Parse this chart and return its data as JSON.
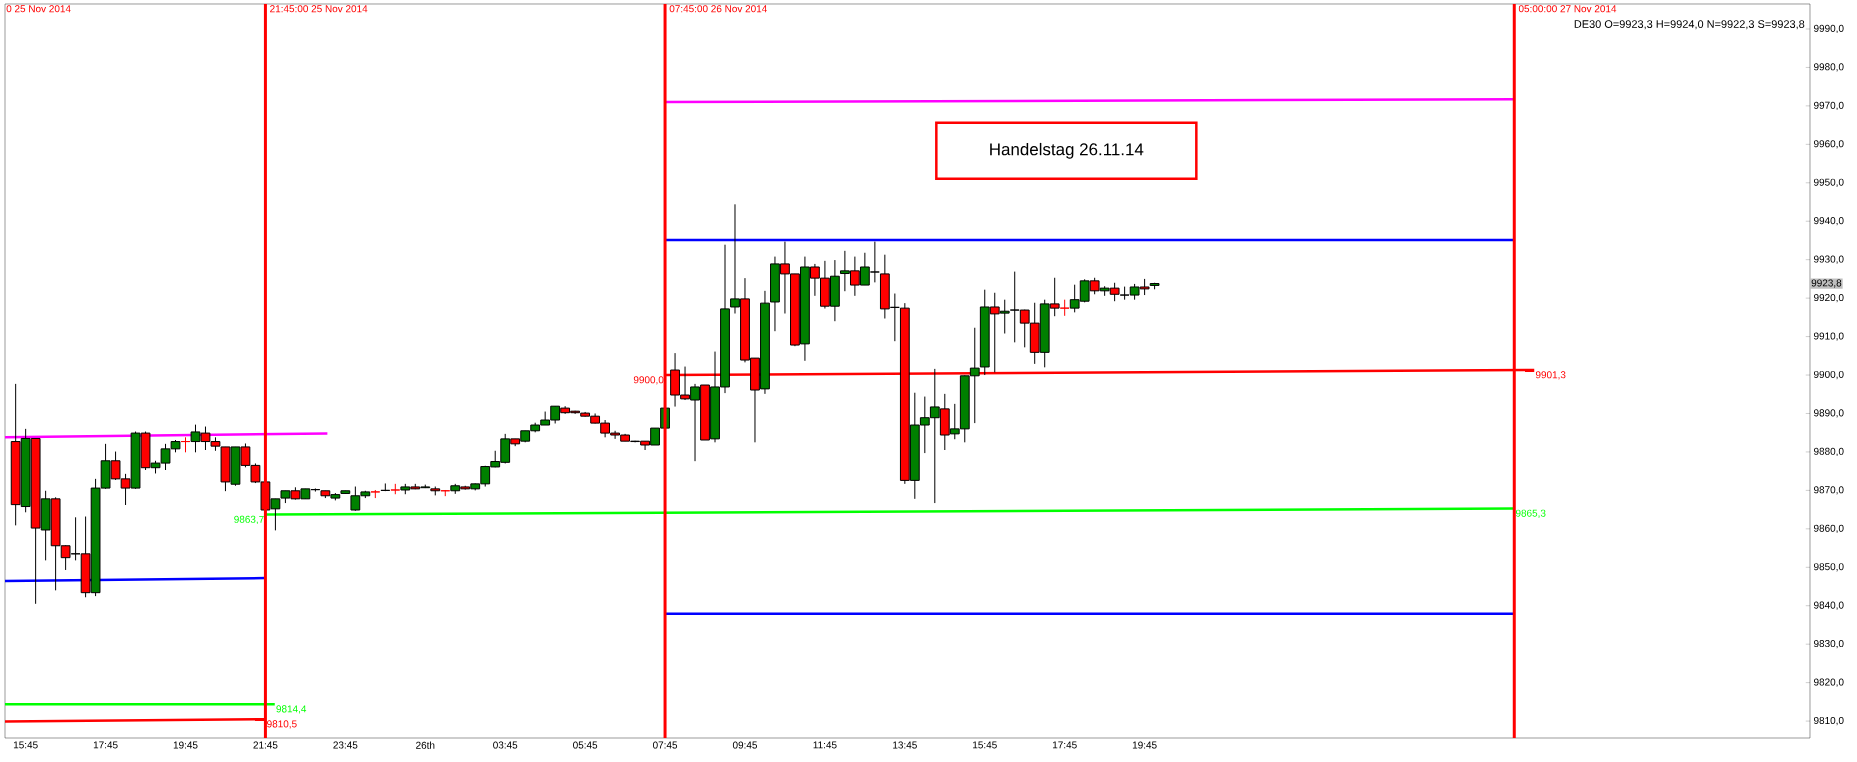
{
  "chart_data": {
    "type": "candlestick",
    "x": [
      "2014-11-25T15:30",
      "2014-11-25T15:45",
      "2014-11-25T16:00",
      "2014-11-25T16:15",
      "2014-11-25T16:30",
      "2014-11-25T16:45",
      "2014-11-25T17:00",
      "2014-11-25T17:15",
      "2014-11-25T17:30",
      "2014-11-25T17:45",
      "2014-11-25T18:00",
      "2014-11-25T18:15",
      "2014-11-25T18:30",
      "2014-11-25T18:45",
      "2014-11-25T19:00",
      "2014-11-25T19:15",
      "2014-11-25T19:30",
      "2014-11-25T19:45",
      "2014-11-25T20:00",
      "2014-11-25T20:15",
      "2014-11-25T20:30",
      "2014-11-25T20:45",
      "2014-11-25T21:00",
      "2014-11-25T21:15",
      "2014-11-25T21:30",
      "2014-11-25T21:45",
      "2014-11-25T22:00",
      "2014-11-25T22:15",
      "2014-11-25T22:30",
      "2014-11-25T22:45",
      "2014-11-25T23:00",
      "2014-11-25T23:15",
      "2014-11-25T23:30",
      "2014-11-25T23:45",
      "2014-11-26T00:00",
      "2014-11-26T00:15",
      "2014-11-26T00:30",
      "2014-11-26T00:45",
      "2014-11-26T01:00",
      "2014-11-26T01:15",
      "2014-11-26T01:30",
      "2014-11-26T01:45",
      "2014-11-26T02:00",
      "2014-11-26T02:15",
      "2014-11-26T02:30",
      "2014-11-26T02:45",
      "2014-11-26T03:00",
      "2014-11-26T03:15",
      "2014-11-26T03:30",
      "2014-11-26T03:45",
      "2014-11-26T04:00",
      "2014-11-26T04:15",
      "2014-11-26T04:30",
      "2014-11-26T04:45",
      "2014-11-26T05:00",
      "2014-11-26T05:15",
      "2014-11-26T05:30",
      "2014-11-26T05:45",
      "2014-11-26T06:00",
      "2014-11-26T06:15",
      "2014-11-26T06:30",
      "2014-11-26T06:45",
      "2014-11-26T07:00",
      "2014-11-26T07:15",
      "2014-11-26T07:30",
      "2014-11-26T07:45",
      "2014-11-26T08:00",
      "2014-11-26T08:15",
      "2014-11-26T08:30",
      "2014-11-26T08:45",
      "2014-11-26T09:00",
      "2014-11-26T09:15",
      "2014-11-26T09:30",
      "2014-11-26T09:45",
      "2014-11-26T10:00",
      "2014-11-26T10:15",
      "2014-11-26T10:30",
      "2014-11-26T10:45",
      "2014-11-26T11:00",
      "2014-11-26T11:15",
      "2014-11-26T11:30",
      "2014-11-26T11:45",
      "2014-11-26T12:00",
      "2014-11-26T12:15",
      "2014-11-26T12:30",
      "2014-11-26T12:45",
      "2014-11-26T13:00",
      "2014-11-26T13:15",
      "2014-11-26T13:30",
      "2014-11-26T13:45",
      "2014-11-26T14:00",
      "2014-11-26T14:15",
      "2014-11-26T14:30",
      "2014-11-26T14:45",
      "2014-11-26T15:00",
      "2014-11-26T15:15",
      "2014-11-26T15:30",
      "2014-11-26T15:45",
      "2014-11-26T16:00",
      "2014-11-26T16:15",
      "2014-11-26T16:30",
      "2014-11-26T16:45",
      "2014-11-26T17:00",
      "2014-11-26T17:15",
      "2014-11-26T17:30",
      "2014-11-26T17:45",
      "2014-11-26T18:00",
      "2014-11-26T18:15",
      "2014-11-26T18:30",
      "2014-11-26T18:45",
      "2014-11-26T19:00",
      "2014-11-26T19:15",
      "2014-11-26T19:30",
      "2014-11-26T19:45",
      "2014-11-26T20:00"
    ],
    "ohlc": [
      [
        9882.7,
        9897.7,
        9860.9,
        9866.3
      ],
      [
        9865.8,
        9886.0,
        9864.3,
        9883.5
      ],
      [
        9883.5,
        9883.5,
        9840.5,
        9860.2
      ],
      [
        9859.7,
        9869.9,
        9851.8,
        9867.8
      ],
      [
        9867.8,
        9868.2,
        9844.0,
        9855.6
      ],
      [
        9855.6,
        9855.7,
        9849.3,
        9852.5
      ],
      [
        9853.5,
        9863.0,
        9851.8,
        9853.5
      ],
      [
        9853.5,
        9863.2,
        9842.2,
        9843.4
      ],
      [
        9843.4,
        9873.0,
        9842.5,
        9870.6
      ],
      [
        9870.6,
        9882.1,
        9870.4,
        9877.7
      ],
      [
        9877.7,
        9880.1,
        9872.7,
        9873.0
      ],
      [
        9873.0,
        9874.3,
        9866.2,
        9870.6
      ],
      [
        9870.6,
        9885.3,
        9870.4,
        9884.9
      ],
      [
        9884.9,
        9885.3,
        9875.3,
        9875.9
      ],
      [
        9875.9,
        9877.7,
        9874.4,
        9877.1
      ],
      [
        9877.1,
        9882.1,
        9875.3,
        9880.8
      ],
      [
        9880.8,
        9883.1,
        9879.9,
        9882.7
      ],
      [
        9882.7,
        9883.8,
        9879.9,
        9882.7
      ],
      [
        9882.7,
        9887.1,
        9879.9,
        9885.2
      ],
      [
        9884.9,
        9886.6,
        9880.5,
        9882.7
      ],
      [
        9882.7,
        9883.8,
        9880.3,
        9881.5
      ],
      [
        9881.3,
        9881.3,
        9869.8,
        9872.2
      ],
      [
        9871.6,
        9881.3,
        9871.2,
        9881.3
      ],
      [
        9881.3,
        9882.2,
        9876.0,
        9876.5
      ],
      [
        9876.5,
        9877.0,
        9871.9,
        9872.2
      ],
      [
        9872.2,
        9872.2,
        9864.9,
        9864.9
      ],
      [
        9865.2,
        9867.8,
        9859.6,
        9867.8
      ],
      [
        9868.0,
        9869.9,
        9866.7,
        9869.9
      ],
      [
        9869.9,
        9870.8,
        9867.6,
        9867.8
      ],
      [
        9867.8,
        9870.4,
        9867.8,
        9870.4
      ],
      [
        9870.2,
        9870.5,
        9869.7,
        9870.2
      ],
      [
        9869.9,
        9869.9,
        9868.0,
        9868.6
      ],
      [
        9868.0,
        9869.3,
        9867.4,
        9868.9
      ],
      [
        9869.2,
        9869.9,
        9869.1,
        9869.9
      ],
      [
        9864.9,
        9871.0,
        9864.7,
        9868.6
      ],
      [
        9868.6,
        9869.9,
        9868.0,
        9869.6
      ],
      [
        9869.6,
        9870.1,
        9868.0,
        9869.6
      ],
      [
        9870.0,
        9871.8,
        9869.8,
        9870.0
      ],
      [
        9870.1,
        9871.7,
        9869.0,
        9870.1
      ],
      [
        9870.1,
        9871.7,
        9869.0,
        9870.9
      ],
      [
        9870.9,
        9871.7,
        9870.3,
        9870.4
      ],
      [
        9870.7,
        9871.5,
        9870.6,
        9870.9
      ],
      [
        9870.4,
        9871.0,
        9868.7,
        9869.9
      ],
      [
        9869.9,
        9870.1,
        9868.5,
        9869.9
      ],
      [
        9869.9,
        9871.7,
        9869.1,
        9871.2
      ],
      [
        9870.9,
        9871.2,
        9870.2,
        9870.4
      ],
      [
        9870.4,
        9871.8,
        9870.0,
        9871.7
      ],
      [
        9871.7,
        9876.4,
        9871.0,
        9876.2
      ],
      [
        9876.1,
        9880.3,
        9876.0,
        9877.5
      ],
      [
        9877.3,
        9884.7,
        9877.0,
        9883.4
      ],
      [
        9883.4,
        9883.4,
        9881.5,
        9882.1
      ],
      [
        9882.8,
        9885.5,
        9882.5,
        9885.5
      ],
      [
        9885.5,
        9887.6,
        9885.1,
        9887.0
      ],
      [
        9887.0,
        9890.5,
        9887.0,
        9888.3
      ],
      [
        9888.3,
        9891.9,
        9887.4,
        9891.9
      ],
      [
        9891.4,
        9891.9,
        9889.9,
        9890.2
      ],
      [
        9890.6,
        9890.7,
        9889.9,
        9890.2
      ],
      [
        9890.1,
        9890.4,
        9889.2,
        9889.3
      ],
      [
        9889.3,
        9890.0,
        9887.4,
        9887.5
      ],
      [
        9887.5,
        9888.3,
        9883.8,
        9884.9
      ],
      [
        9884.9,
        9885.5,
        9883.4,
        9884.4
      ],
      [
        9884.4,
        9884.7,
        9882.8,
        9882.8
      ],
      [
        9882.8,
        9882.9,
        9882.5,
        9882.7
      ],
      [
        9882.8,
        9882.8,
        9880.5,
        9881.8
      ],
      [
        9881.8,
        9886.2,
        9881.8,
        9886.2
      ],
      [
        9886.2,
        9891.4,
        9886.2,
        9891.4
      ],
      [
        9901.3,
        9905.7,
        9891.8,
        9894.8
      ],
      [
        9894.8,
        9902.2,
        9893.5,
        9893.8
      ],
      [
        9893.5,
        9897.7,
        9877.6,
        9896.9
      ],
      [
        9897.4,
        9897.4,
        9883.1,
        9883.1
      ],
      [
        9883.4,
        9906.1,
        9882.5,
        9896.9
      ],
      [
        9896.9,
        9933.9,
        9895.3,
        9917.2
      ],
      [
        9917.7,
        9944.4,
        9916.0,
        9919.8
      ],
      [
        9919.8,
        9925.2,
        9903.3,
        9903.9
      ],
      [
        9904.4,
        9904.4,
        9882.5,
        9896.1
      ],
      [
        9896.4,
        9921.9,
        9895.1,
        9918.7
      ],
      [
        9919.0,
        9930.8,
        9911.4,
        9928.9
      ],
      [
        9928.9,
        9934.7,
        9916.0,
        9926.3
      ],
      [
        9926.3,
        9926.3,
        9907.5,
        9907.8
      ],
      [
        9908.1,
        9930.8,
        9903.7,
        9928.1
      ],
      [
        9928.1,
        9928.9,
        9920.6,
        9925.2
      ],
      [
        9925.2,
        9929.7,
        9917.3,
        9917.9
      ],
      [
        9917.9,
        9929.9,
        9914.0,
        9925.7
      ],
      [
        9926.4,
        9932.3,
        9921.8,
        9927.1
      ],
      [
        9927.1,
        9930.8,
        9920.6,
        9923.4
      ],
      [
        9923.4,
        9931.8,
        9923.4,
        9928.1
      ],
      [
        9926.8,
        9934.7,
        9924.1,
        9926.8
      ],
      [
        9926.3,
        9931.3,
        9914.7,
        9917.2
      ],
      [
        9917.6,
        9921.2,
        9908.8,
        9917.6
      ],
      [
        9917.4,
        9918.7,
        9871.7,
        9872.6
      ],
      [
        9872.6,
        9895.4,
        9867.8,
        9887.0
      ],
      [
        9887.0,
        9894.4,
        9879.7,
        9888.9
      ],
      [
        9888.9,
        9901.6,
        9866.7,
        9891.7
      ],
      [
        9891.2,
        9895.1,
        9880.5,
        9884.4
      ],
      [
        9884.7,
        9892.5,
        9883.3,
        9886.0
      ],
      [
        9886.0,
        9899.9,
        9882.5,
        9899.8
      ],
      [
        9899.8,
        9912.3,
        9887.5,
        9901.8
      ],
      [
        9902.1,
        9922.2,
        9900.0,
        9917.7
      ],
      [
        9917.7,
        9921.4,
        9900.7,
        9915.9
      ],
      [
        9916.1,
        9919.6,
        9910.8,
        9916.6
      ],
      [
        9916.9,
        9926.9,
        9908.5,
        9916.9
      ],
      [
        9916.9,
        9917.0,
        9907.2,
        9913.5
      ],
      [
        9913.5,
        9918.8,
        9902.9,
        9905.9
      ],
      [
        9905.9,
        9919.6,
        9902.0,
        9918.5
      ],
      [
        9918.5,
        9925.3,
        9915.3,
        9917.4
      ],
      [
        9917.4,
        9919.6,
        9915.4,
        9917.4
      ],
      [
        9917.4,
        9923.5,
        9916.3,
        9919.6
      ],
      [
        9919.2,
        9924.9,
        9918.9,
        9924.5
      ],
      [
        9924.5,
        9925.3,
        9921.0,
        9921.9
      ],
      [
        9921.9,
        9923.1,
        9920.6,
        9922.6
      ],
      [
        9922.6,
        9924.0,
        9919.2,
        9921.0
      ],
      [
        9920.8,
        9923.0,
        9919.6,
        9920.8
      ],
      [
        9920.8,
        9923.7,
        9919.6,
        9922.9
      ],
      [
        9922.9,
        9925.0,
        9920.8,
        9922.4
      ],
      [
        9923.3,
        9924.0,
        9922.3,
        9923.8
      ]
    ],
    "colors": [
      "#ff0000",
      "#008000",
      "#ff0000",
      "#008000",
      "#ff0000",
      "#ff0000",
      "#000000",
      "#ff0000",
      "#008000",
      "#008000",
      "#ff0000",
      "#ff0000",
      "#008000",
      "#ff0000",
      "#008000",
      "#008000",
      "#008000",
      "#ff0000",
      "#008000",
      "#ff0000",
      "#ff0000",
      "#ff0000",
      "#008000",
      "#ff0000",
      "#ff0000",
      "#ff0000",
      "#008000",
      "#008000",
      "#ff0000",
      "#008000",
      "#000000",
      "#ff0000",
      "#008000",
      "#008000",
      "#008000",
      "#008000",
      "#ff0000",
      "#000000",
      "#ff0000",
      "#008000",
      "#ff0000",
      "#008000",
      "#ff0000",
      "#ff0000",
      "#008000",
      "#ff0000",
      "#008000",
      "#008000",
      "#008000",
      "#008000",
      "#ff0000",
      "#008000",
      "#008000",
      "#008000",
      "#008000",
      "#ff0000",
      "#ff0000",
      "#ff0000",
      "#ff0000",
      "#ff0000",
      "#ff0000",
      "#ff0000",
      "#ff0000",
      "#ff0000",
      "#008000",
      "#008000",
      "#ff0000",
      "#ff0000",
      "#008000",
      "#ff0000",
      "#008000",
      "#008000",
      "#008000",
      "#ff0000",
      "#ff0000",
      "#008000",
      "#008000",
      "#ff0000",
      "#ff0000",
      "#008000",
      "#ff0000",
      "#ff0000",
      "#008000",
      "#008000",
      "#ff0000",
      "#008000",
      "#000000",
      "#ff0000",
      "#000000",
      "#ff0000",
      "#008000",
      "#008000",
      "#008000",
      "#ff0000",
      "#008000",
      "#008000",
      "#008000",
      "#008000",
      "#ff0000",
      "#008000",
      "#000000",
      "#ff0000",
      "#ff0000",
      "#008000",
      "#ff0000",
      "#ff0000",
      "#008000",
      "#008000",
      "#ff0000",
      "#008000",
      "#ff0000",
      "#000000",
      "#008000",
      "#ff0000",
      "#008000"
    ],
    "series": [
      {
        "type": "line",
        "color": "#ff00ff",
        "x": [
          "2014-11-25T15:14",
          "2014-11-25T23:18"
        ],
        "values": [
          9883.8,
          9884.8
        ]
      },
      {
        "type": "line",
        "color": "#0000ff",
        "x": [
          "2014-11-25T15:14",
          "2014-11-25T21:45"
        ],
        "values": [
          9846.4,
          9847.2
        ]
      },
      {
        "type": "line",
        "color": "#00ff00",
        "x": [
          "2014-11-25T15:14",
          "2014-11-25T21:59"
        ],
        "values": [
          9814.4,
          9814.4
        ]
      },
      {
        "type": "line",
        "color": "#ff0000",
        "x": [
          "2014-11-25T15:14",
          "2014-11-25T21:45"
        ],
        "values": [
          9809.9,
          9810.5
        ]
      },
      {
        "type": "line",
        "color": "#00ff00",
        "x": [
          "2014-11-25T21:45",
          "2014-11-27T05:00"
        ],
        "values": [
          9863.7,
          9865.3
        ]
      },
      {
        "type": "line",
        "color": "#ff0000",
        "x": [
          "2014-11-26T07:45",
          "2014-11-27T05:30"
        ],
        "values": [
          9900.0,
          9901.3
        ]
      },
      {
        "type": "line",
        "color": "#ff00ff",
        "x": [
          "2014-11-26T07:45",
          "2014-11-27T05:00"
        ],
        "values": [
          9971.0,
          9971.7
        ]
      },
      {
        "type": "line",
        "color": "#0000ff",
        "x": [
          "2014-11-26T07:45",
          "2014-11-27T05:00"
        ],
        "values": [
          9935.1,
          9935.1
        ]
      },
      {
        "type": "line",
        "color": "#0000ff",
        "x": [
          "2014-11-26T07:45",
          "2014-11-27T05:00"
        ],
        "values": [
          9837.9,
          9837.9
        ]
      }
    ],
    "ref_lines": [
      {
        "axis": "x",
        "value": "2014-11-25T21:45",
        "label": "21:45:00 25 Nov 2014",
        "color": "#ff0000"
      },
      {
        "axis": "x",
        "value": "2014-11-26T07:45",
        "label": "07:45:00 26 Nov 2014",
        "color": "#ff0000"
      },
      {
        "axis": "x",
        "value": "2014-11-27T05:00",
        "label": "05:00:00 27 Nov 2014",
        "color": "#ff0000"
      }
    ],
    "annotations": [
      "DE30 O=9923,3 H=9924,0 N=9922,3 S=9923,8",
      "0 25 Nov 2014",
      "Handelstag 26.11.14",
      {
        "text": "9863,7",
        "x": "2014-11-25T21:45",
        "y": 9863.7
      },
      {
        "text": "9814,4",
        "x": "2014-11-25T21:59",
        "y": 9814.4
      },
      {
        "text": "9810,5",
        "x": "2014-11-25T21:45",
        "y": 9810.5
      },
      {
        "text": "9900,0",
        "x": "2014-11-26T07:45",
        "y": 9900.0
      },
      {
        "text": "9901,3",
        "x": "2014-11-27T05:30",
        "y": 9901.3
      },
      {
        "text": "9865,3",
        "x": "2014-11-27T05:00",
        "y": 9865.3
      },
      {
        "text": "9923,8",
        "y": 9923.8
      }
    ],
    "xlim": [
      "2014-11-25T15:14",
      "2014-11-27T12:24"
    ],
    "ylim": [
      9805.6,
      9996.5
    ],
    "xticks": [
      {
        "value": "2014-11-25T15:45",
        "label": "15:45"
      },
      {
        "value": "2014-11-25T17:45",
        "label": "17:45"
      },
      {
        "value": "2014-11-25T19:45",
        "label": "19:45"
      },
      {
        "value": "2014-11-25T21:45",
        "label": "21:45"
      },
      {
        "value": "2014-11-25T23:45",
        "label": "23:45"
      },
      {
        "value": "2014-11-26T01:45",
        "label": "26th"
      },
      {
        "value": "2014-11-26T03:45",
        "label": "03:45"
      },
      {
        "value": "2014-11-26T05:45",
        "label": "05:45"
      },
      {
        "value": "2014-11-26T07:45",
        "label": "07:45"
      },
      {
        "value": "2014-11-26T09:45",
        "label": "09:45"
      },
      {
        "value": "2014-11-26T11:45",
        "label": "11:45"
      },
      {
        "value": "2014-11-26T13:45",
        "label": "13:45"
      },
      {
        "value": "2014-11-26T15:45",
        "label": "15:45"
      },
      {
        "value": "2014-11-26T17:45",
        "label": "17:45"
      },
      {
        "value": "2014-11-26T19:45",
        "label": "19:45"
      }
    ],
    "yticks": [
      {
        "value": 9810,
        "label": "9810,0"
      },
      {
        "value": 9820,
        "label": "9820,0"
      },
      {
        "value": 9830,
        "label": "9830,0"
      },
      {
        "value": 9840,
        "label": "9840,0"
      },
      {
        "value": 9850,
        "label": "9850,0"
      },
      {
        "value": 9860,
        "label": "9860,0"
      },
      {
        "value": 9870,
        "label": "9870,0"
      },
      {
        "value": 9880,
        "label": "9880,0"
      },
      {
        "value": 9890,
        "label": "9890,0"
      },
      {
        "value": 9900,
        "label": "9900,0"
      },
      {
        "value": 9910,
        "label": "9910,0"
      },
      {
        "value": 9920,
        "label": "9920,0"
      },
      {
        "value": 9930,
        "label": "9930,0"
      },
      {
        "value": 9940,
        "label": "9940,0"
      },
      {
        "value": 9950,
        "label": "9950,0"
      },
      {
        "value": 9960,
        "label": "9960,0"
      },
      {
        "value": 9970,
        "label": "9970,0"
      },
      {
        "value": 9980,
        "label": "9980,0"
      },
      {
        "value": 9990,
        "label": "9990,0"
      }
    ]
  }
}
